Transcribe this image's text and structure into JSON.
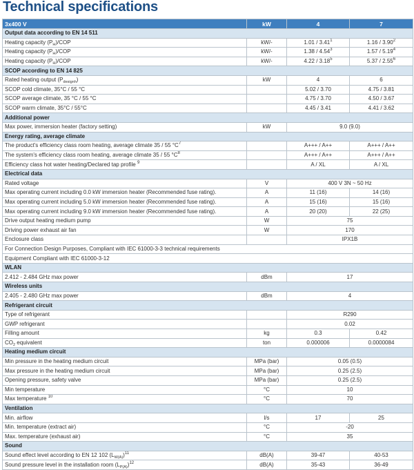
{
  "title": "Technical specifications",
  "header": {
    "label": "3x400 V",
    "unit": "kW",
    "col1": "4",
    "col2": "7"
  },
  "colors": {
    "header_bg": "#3f7fbf",
    "section_bg": "#d6e4f0",
    "title": "#1d4f86"
  },
  "rows": [
    {
      "type": "section",
      "label": "Output data according to EN 14 511"
    },
    {
      "type": "row",
      "label": "Heating capacity (P",
      "sub": "H",
      "label_after": ")/COP",
      "unit": "kW/-",
      "values": [
        {
          "v": "1.01 / 3.41",
          "sup": "1"
        },
        {
          "v": "1.16 / 3.90",
          "sup": "2"
        }
      ]
    },
    {
      "type": "row",
      "label": "Heating capacity (P",
      "sub": "H",
      "label_after": ")/COP",
      "unit": "kW/-",
      "values": [
        {
          "v": "1.38 / 4.54",
          "sup": "3"
        },
        {
          "v": "1.57 / 5.19",
          "sup": "4"
        }
      ]
    },
    {
      "type": "row",
      "label": "Heating capacity (P",
      "sub": "H",
      "label_after": ")/COP",
      "unit": "kW/-",
      "values": [
        {
          "v": "4.22 / 3.18",
          "sup": "5"
        },
        {
          "v": "5.37 / 2.55",
          "sup": "6"
        }
      ]
    },
    {
      "type": "section",
      "label": "SCOP according to EN 14 825"
    },
    {
      "type": "row",
      "label": "Rated heating output (P",
      "sub": "designh",
      "label_after": ")",
      "unit": "kW",
      "values": [
        {
          "v": "4"
        },
        {
          "v": "6"
        }
      ]
    },
    {
      "type": "row",
      "label": "SCOP cold climate, 35°C / 55 °C",
      "unit": "",
      "values": [
        {
          "v": "5.02 / 3.70"
        },
        {
          "v": "4.75 / 3.81"
        }
      ]
    },
    {
      "type": "row",
      "label": "SCOP average climate, 35 °C / 55 °C",
      "unit": "",
      "values": [
        {
          "v": "4.75 / 3.70"
        },
        {
          "v": "4.50 / 3.67"
        }
      ]
    },
    {
      "type": "row",
      "label": "SCOP warm climate, 35°C / 55°C",
      "unit": "",
      "values": [
        {
          "v": "4.45 / 3.41"
        },
        {
          "v": "4.41 / 3.62"
        }
      ]
    },
    {
      "type": "section",
      "label": "Additional power"
    },
    {
      "type": "row",
      "label": "Max power, immersion heater (factory setting)",
      "unit": "kW",
      "values": [
        {
          "v": "9.0 (9.0)"
        }
      ]
    },
    {
      "type": "section",
      "label": "Energy rating, average climate"
    },
    {
      "type": "row",
      "label": "The product's efficiency class room heating, average climate 35 / 55 °C",
      "sup": "7",
      "unit": "",
      "values": [
        {
          "v": "A+++ / A++"
        },
        {
          "v": "A+++ / A++"
        }
      ]
    },
    {
      "type": "row",
      "label": "The system's efficiency class room heating, average climate 35 / 55 °C",
      "sup": "8",
      "unit": "",
      "values": [
        {
          "v": "A+++ / A++"
        },
        {
          "v": "A+++ / A++"
        }
      ]
    },
    {
      "type": "row",
      "label": "Efficiency class hot water heating/Declared tap profile ",
      "sup": "9",
      "unit": "",
      "values": [
        {
          "v": "A / XL"
        },
        {
          "v": "A / XL"
        }
      ]
    },
    {
      "type": "section",
      "label": "Electrical data"
    },
    {
      "type": "row",
      "label": "Rated voltage",
      "unit": "V",
      "values": [
        {
          "v": "400 V 3N ~ 50 Hz"
        }
      ]
    },
    {
      "type": "row",
      "label": "Max operating current including 0.0 kW immersion heater (Recommended fuse rating).",
      "unit": "A",
      "values": [
        {
          "v": "11 (16)"
        },
        {
          "v": "14 (16)"
        }
      ]
    },
    {
      "type": "row",
      "label": "Max operating current including 5.0 kW immersion heater (Recommended fuse rating).",
      "unit": "A",
      "values": [
        {
          "v": "15 (16)"
        },
        {
          "v": "15 (16)"
        }
      ]
    },
    {
      "type": "row",
      "label": "Max operating current including 9.0 kW immersion heater (Recommended fuse rating).",
      "unit": "A",
      "values": [
        {
          "v": "20 (20)"
        },
        {
          "v": "22 (25)"
        }
      ]
    },
    {
      "type": "row",
      "label": "Drive output heating medium pump",
      "unit": "W",
      "values": [
        {
          "v": "75"
        }
      ]
    },
    {
      "type": "row",
      "label": "Driving power exhaust air fan",
      "unit": "W",
      "values": [
        {
          "v": "170"
        }
      ]
    },
    {
      "type": "row",
      "label": "Enclosure class",
      "unit": "",
      "values": [
        {
          "v": "IPX1B"
        }
      ]
    },
    {
      "type": "full",
      "label": "For Connection Design Purposes, Compliant with IEC 61000-3-3 technical requirements"
    },
    {
      "type": "full",
      "label": "Equipment Compliant with IEC 61000-3-12"
    },
    {
      "type": "section",
      "label": "WLAN"
    },
    {
      "type": "row",
      "label": "2.412 - 2.484 GHz max power",
      "unit": "dBm",
      "values": [
        {
          "v": "17"
        }
      ]
    },
    {
      "type": "section",
      "label": "Wireless units"
    },
    {
      "type": "row",
      "label": "2.405 - 2.480 GHz max power",
      "unit": "dBm",
      "values": [
        {
          "v": "4"
        }
      ]
    },
    {
      "type": "section",
      "label": "Refrigerant circuit"
    },
    {
      "type": "row",
      "label": "Type of refrigerant",
      "unit": "",
      "values": [
        {
          "v": "R290"
        }
      ]
    },
    {
      "type": "row",
      "label": "GWP refrigerant",
      "unit": "",
      "values": [
        {
          "v": "0.02"
        }
      ]
    },
    {
      "type": "row",
      "label": "Filling amount",
      "unit": "kg",
      "values": [
        {
          "v": "0.3"
        },
        {
          "v": "0.42"
        }
      ]
    },
    {
      "type": "row",
      "label": "CO",
      "sub": "2",
      "label_after": " equivalent",
      "unit": "ton",
      "values": [
        {
          "v": "0.000006"
        },
        {
          "v": "0.0000084"
        }
      ]
    },
    {
      "type": "section",
      "label": "Heating medium circuit"
    },
    {
      "type": "row",
      "label": "Min pressure in the heating medium circuit",
      "unit": "MPa (bar)",
      "values": [
        {
          "v": "0.05 (0.5)"
        }
      ]
    },
    {
      "type": "row",
      "label": "Max pressure in the heating medium circuit",
      "unit": "MPa (bar)",
      "values": [
        {
          "v": "0.25 (2.5)"
        }
      ]
    },
    {
      "type": "row",
      "label": "Opening pressure, safety valve",
      "unit": "MPa (bar)",
      "values": [
        {
          "v": "0.25 (2.5)"
        }
      ]
    },
    {
      "type": "row",
      "label": "Min temperature",
      "unit": "°C",
      "values": [
        {
          "v": "10"
        }
      ]
    },
    {
      "type": "row",
      "label": "Max temperature ",
      "sup": "10",
      "unit": "°C",
      "values": [
        {
          "v": "70"
        }
      ]
    },
    {
      "type": "section",
      "label": "Ventilation"
    },
    {
      "type": "row",
      "label": "Min. airflow",
      "unit": "l/s",
      "values": [
        {
          "v": "17"
        },
        {
          "v": "25"
        }
      ]
    },
    {
      "type": "row",
      "label": "Min. temperature (extract air)",
      "unit": "°C",
      "values": [
        {
          "v": "-20"
        }
      ]
    },
    {
      "type": "row",
      "label": "Max. temperature (exhaust air)",
      "unit": "°C",
      "values": [
        {
          "v": "35"
        }
      ]
    },
    {
      "type": "section",
      "label": "Sound"
    },
    {
      "type": "row",
      "label": "Sound effect level according to EN 12 102 (L",
      "sub": "W(A)",
      "label_after": ")",
      "sup": "11",
      "unit": "dB(A)",
      "values": [
        {
          "v": "39-47"
        },
        {
          "v": "40-53"
        }
      ]
    },
    {
      "type": "row",
      "label": "Sound pressure level in the installation room (L",
      "sub": "P(A)",
      "label_after": ")",
      "sup": "12",
      "unit": "dB(A)",
      "values": [
        {
          "v": "35-43"
        },
        {
          "v": "36-49"
        }
      ]
    }
  ]
}
